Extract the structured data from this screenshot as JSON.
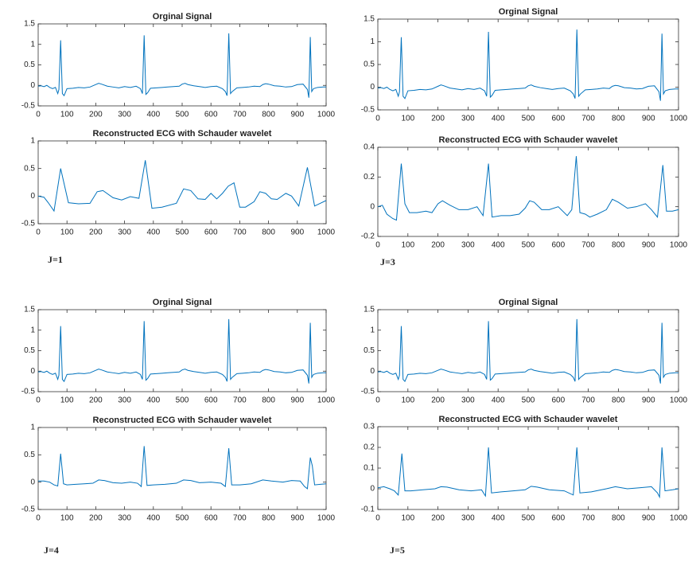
{
  "chart_data": [
    {
      "type": "line",
      "title": "Orginal Signal",
      "color": "#0072bd",
      "x": [
        0,
        10,
        20,
        30,
        40,
        50,
        60,
        68,
        72,
        78,
        84,
        90,
        100,
        120,
        140,
        160,
        180,
        200,
        210,
        220,
        240,
        260,
        280,
        300,
        320,
        340,
        355,
        362,
        368,
        374,
        380,
        390,
        410,
        430,
        450,
        470,
        490,
        500,
        510,
        520,
        540,
        560,
        580,
        600,
        620,
        640,
        650,
        656,
        662,
        668,
        674,
        690,
        710,
        730,
        750,
        770,
        780,
        790,
        800,
        820,
        840,
        860,
        880,
        900,
        920,
        935,
        940,
        945,
        950,
        956,
        970,
        990,
        1000
      ],
      "values": [
        -0.02,
        -0.01,
        -0.03,
        0,
        -0.05,
        -0.08,
        -0.05,
        -0.2,
        -0.1,
        1.1,
        -0.2,
        -0.25,
        -0.08,
        -0.07,
        -0.05,
        -0.06,
        -0.04,
        0.02,
        0.05,
        0.03,
        -0.02,
        -0.04,
        -0.06,
        -0.03,
        -0.05,
        -0.02,
        -0.08,
        -0.2,
        1.22,
        -0.22,
        -0.18,
        -0.07,
        -0.06,
        -0.05,
        -0.04,
        -0.03,
        -0.02,
        0.03,
        0.05,
        0.02,
        -0.01,
        -0.03,
        -0.05,
        -0.03,
        -0.02,
        -0.08,
        -0.15,
        -0.25,
        1.27,
        -0.2,
        -0.15,
        -0.06,
        -0.05,
        -0.04,
        -0.02,
        -0.03,
        0.02,
        0.04,
        0.03,
        -0.01,
        -0.02,
        -0.04,
        -0.03,
        0.02,
        0.03,
        -0.1,
        -0.3,
        1.18,
        -0.15,
        -0.08,
        -0.05,
        -0.04,
        -0.04
      ],
      "xlim": [
        0,
        1000
      ],
      "xticks": [
        0,
        100,
        200,
        300,
        400,
        500,
        600,
        700,
        800,
        900,
        1000
      ],
      "ylim": [
        -0.5,
        1.5
      ],
      "yticks": [
        -0.5,
        0,
        0.5,
        1,
        1.5
      ]
    },
    {
      "type": "line",
      "title": "Reconstructed ECG with Schauder wavelet",
      "color": "#0072bd",
      "x": [
        0,
        20,
        35,
        55,
        78,
        105,
        140,
        180,
        205,
        225,
        260,
        290,
        320,
        350,
        372,
        395,
        430,
        480,
        505,
        530,
        555,
        580,
        600,
        620,
        640,
        660,
        680,
        700,
        720,
        750,
        770,
        790,
        810,
        830,
        860,
        880,
        905,
        935,
        960,
        1000
      ],
      "values": [
        0,
        -0.02,
        -0.12,
        -0.27,
        0.5,
        -0.12,
        -0.14,
        -0.13,
        0.08,
        0.1,
        -0.03,
        -0.07,
        -0.01,
        -0.04,
        0.65,
        -0.22,
        -0.2,
        -0.13,
        0.13,
        0.1,
        -0.05,
        -0.06,
        0.05,
        -0.05,
        0.05,
        0.18,
        0.24,
        -0.2,
        -0.2,
        -0.1,
        0.08,
        0.05,
        -0.05,
        -0.06,
        0.05,
        0,
        -0.18,
        0.52,
        -0.18,
        -0.08
      ],
      "xlim": [
        0,
        1000
      ],
      "xticks": [
        0,
        100,
        200,
        300,
        400,
        500,
        600,
        700,
        800,
        900,
        1000
      ],
      "ylim": [
        -0.5,
        1
      ],
      "yticks": [
        -0.5,
        0,
        0.5,
        1
      ]
    },
    {
      "type": "line",
      "title": "Orginal Signal",
      "color": "#0072bd",
      "x": [
        0,
        10,
        20,
        30,
        40,
        50,
        60,
        68,
        72,
        78,
        84,
        90,
        100,
        120,
        140,
        160,
        180,
        200,
        210,
        220,
        240,
        260,
        280,
        300,
        320,
        340,
        355,
        362,
        368,
        374,
        380,
        390,
        410,
        430,
        450,
        470,
        490,
        500,
        510,
        520,
        540,
        560,
        580,
        600,
        620,
        640,
        650,
        656,
        662,
        668,
        674,
        690,
        710,
        730,
        750,
        770,
        780,
        790,
        800,
        820,
        840,
        860,
        880,
        900,
        920,
        935,
        940,
        945,
        950,
        956,
        970,
        990,
        1000
      ],
      "values": [
        -0.02,
        -0.01,
        -0.03,
        0,
        -0.05,
        -0.08,
        -0.05,
        -0.2,
        -0.1,
        1.1,
        -0.2,
        -0.25,
        -0.08,
        -0.07,
        -0.05,
        -0.06,
        -0.04,
        0.02,
        0.05,
        0.03,
        -0.02,
        -0.04,
        -0.06,
        -0.03,
        -0.05,
        -0.02,
        -0.08,
        -0.2,
        1.22,
        -0.22,
        -0.18,
        -0.07,
        -0.06,
        -0.05,
        -0.04,
        -0.03,
        -0.02,
        0.03,
        0.05,
        0.02,
        -0.01,
        -0.03,
        -0.05,
        -0.03,
        -0.02,
        -0.08,
        -0.15,
        -0.25,
        1.27,
        -0.2,
        -0.15,
        -0.06,
        -0.05,
        -0.04,
        -0.02,
        -0.03,
        0.02,
        0.04,
        0.03,
        -0.01,
        -0.02,
        -0.04,
        -0.03,
        0.02,
        0.03,
        -0.1,
        -0.3,
        1.18,
        -0.15,
        -0.08,
        -0.05,
        -0.04,
        -0.04
      ],
      "xlim": [
        0,
        1000
      ],
      "xticks": [
        0,
        100,
        200,
        300,
        400,
        500,
        600,
        700,
        800,
        900,
        1000
      ],
      "ylim": [
        -0.5,
        1.5
      ],
      "yticks": [
        -0.5,
        0,
        0.5,
        1,
        1.5
      ]
    },
    {
      "type": "line",
      "title": "Reconstructed ECG with Schauder wavelet",
      "color": "#0072bd",
      "x": [
        0,
        15,
        30,
        50,
        62,
        78,
        90,
        105,
        130,
        160,
        180,
        200,
        215,
        240,
        270,
        300,
        330,
        350,
        368,
        380,
        410,
        440,
        470,
        490,
        505,
        520,
        545,
        570,
        600,
        630,
        645,
        660,
        672,
        690,
        705,
        730,
        760,
        780,
        800,
        830,
        860,
        890,
        910,
        930,
        948,
        960,
        980,
        1000
      ],
      "values": [
        0,
        0.01,
        -0.05,
        -0.08,
        -0.09,
        0.29,
        0.02,
        -0.04,
        -0.04,
        -0.03,
        -0.04,
        0.02,
        0.04,
        0.01,
        -0.02,
        -0.02,
        0,
        -0.06,
        0.29,
        -0.07,
        -0.06,
        -0.06,
        -0.05,
        -0.01,
        0.04,
        0.03,
        -0.02,
        -0.02,
        0,
        -0.06,
        -0.02,
        0.34,
        -0.04,
        -0.05,
        -0.07,
        -0.05,
        -0.02,
        0.05,
        0.03,
        -0.01,
        0,
        0.02,
        -0.02,
        -0.07,
        0.28,
        -0.03,
        -0.03,
        -0.02
      ],
      "xlim": [
        0,
        1000
      ],
      "xticks": [
        0,
        100,
        200,
        300,
        400,
        500,
        600,
        700,
        800,
        900,
        1000
      ],
      "ylim": [
        -0.2,
        0.4
      ],
      "yticks": [
        -0.2,
        0,
        0.2,
        0.4
      ]
    },
    {
      "type": "line",
      "title": "Orginal Signal",
      "color": "#0072bd",
      "x": [
        0,
        10,
        20,
        30,
        40,
        50,
        60,
        68,
        72,
        78,
        84,
        90,
        100,
        120,
        140,
        160,
        180,
        200,
        210,
        220,
        240,
        260,
        280,
        300,
        320,
        340,
        355,
        362,
        368,
        374,
        380,
        390,
        410,
        430,
        450,
        470,
        490,
        500,
        510,
        520,
        540,
        560,
        580,
        600,
        620,
        640,
        650,
        656,
        662,
        668,
        674,
        690,
        710,
        730,
        750,
        770,
        780,
        790,
        800,
        820,
        840,
        860,
        880,
        900,
        920,
        935,
        940,
        945,
        950,
        956,
        970,
        990,
        1000
      ],
      "values": [
        -0.02,
        -0.01,
        -0.03,
        0,
        -0.05,
        -0.08,
        -0.05,
        -0.2,
        -0.1,
        1.1,
        -0.2,
        -0.25,
        -0.08,
        -0.07,
        -0.05,
        -0.06,
        -0.04,
        0.02,
        0.05,
        0.03,
        -0.02,
        -0.04,
        -0.06,
        -0.03,
        -0.05,
        -0.02,
        -0.08,
        -0.2,
        1.22,
        -0.22,
        -0.18,
        -0.07,
        -0.06,
        -0.05,
        -0.04,
        -0.03,
        -0.02,
        0.03,
        0.05,
        0.02,
        -0.01,
        -0.03,
        -0.05,
        -0.03,
        -0.02,
        -0.08,
        -0.15,
        -0.25,
        1.27,
        -0.2,
        -0.15,
        -0.06,
        -0.05,
        -0.04,
        -0.02,
        -0.03,
        0.02,
        0.04,
        0.03,
        -0.01,
        -0.02,
        -0.04,
        -0.03,
        0.02,
        0.03,
        -0.1,
        -0.3,
        1.18,
        -0.15,
        -0.08,
        -0.05,
        -0.04,
        -0.04
      ],
      "xlim": [
        0,
        1000
      ],
      "xticks": [
        0,
        100,
        200,
        300,
        400,
        500,
        600,
        700,
        800,
        900,
        1000
      ],
      "ylim": [
        -0.5,
        1.5
      ],
      "yticks": [
        -0.5,
        0,
        0.5,
        1,
        1.5
      ]
    },
    {
      "type": "line",
      "title": "Reconstructed ECG with Schauder wavelet",
      "color": "#0072bd",
      "x": [
        0,
        20,
        40,
        55,
        68,
        78,
        88,
        100,
        130,
        160,
        190,
        210,
        230,
        260,
        290,
        320,
        345,
        358,
        368,
        378,
        400,
        440,
        480,
        505,
        530,
        560,
        600,
        635,
        650,
        662,
        672,
        700,
        740,
        780,
        810,
        850,
        880,
        910,
        925,
        935,
        945,
        952,
        960,
        980,
        1000
      ],
      "values": [
        0.02,
        0.02,
        0,
        -0.05,
        -0.07,
        0.52,
        -0.03,
        -0.05,
        -0.04,
        -0.03,
        -0.02,
        0.04,
        0.03,
        -0.01,
        -0.02,
        0,
        -0.02,
        -0.08,
        0.66,
        -0.06,
        -0.05,
        -0.04,
        -0.02,
        0.04,
        0.03,
        -0.01,
        0,
        -0.02,
        -0.08,
        0.62,
        -0.05,
        -0.05,
        -0.03,
        0.04,
        0.02,
        0,
        0.03,
        0.02,
        -0.08,
        -0.12,
        0.45,
        0.3,
        -0.05,
        -0.04,
        -0.03
      ],
      "xlim": [
        0,
        1000
      ],
      "xticks": [
        0,
        100,
        200,
        300,
        400,
        500,
        600,
        700,
        800,
        900,
        1000
      ],
      "ylim": [
        -0.5,
        1
      ],
      "yticks": [
        -0.5,
        0,
        0.5,
        1
      ]
    },
    {
      "type": "line",
      "title": "Orginal Signal",
      "color": "#0072bd",
      "x": [
        0,
        10,
        20,
        30,
        40,
        50,
        60,
        68,
        72,
        78,
        84,
        90,
        100,
        120,
        140,
        160,
        180,
        200,
        210,
        220,
        240,
        260,
        280,
        300,
        320,
        340,
        355,
        362,
        368,
        374,
        380,
        390,
        410,
        430,
        450,
        470,
        490,
        500,
        510,
        520,
        540,
        560,
        580,
        600,
        620,
        640,
        650,
        656,
        662,
        668,
        674,
        690,
        710,
        730,
        750,
        770,
        780,
        790,
        800,
        820,
        840,
        860,
        880,
        900,
        920,
        935,
        940,
        945,
        950,
        956,
        970,
        990,
        1000
      ],
      "values": [
        -0.02,
        -0.01,
        -0.03,
        0,
        -0.05,
        -0.08,
        -0.05,
        -0.2,
        -0.1,
        1.1,
        -0.2,
        -0.25,
        -0.08,
        -0.07,
        -0.05,
        -0.06,
        -0.04,
        0.02,
        0.05,
        0.03,
        -0.02,
        -0.04,
        -0.06,
        -0.03,
        -0.05,
        -0.02,
        -0.08,
        -0.2,
        1.22,
        -0.22,
        -0.18,
        -0.07,
        -0.06,
        -0.05,
        -0.04,
        -0.03,
        -0.02,
        0.03,
        0.05,
        0.02,
        -0.01,
        -0.03,
        -0.05,
        -0.03,
        -0.02,
        -0.08,
        -0.15,
        -0.25,
        1.27,
        -0.2,
        -0.15,
        -0.06,
        -0.05,
        -0.04,
        -0.02,
        -0.03,
        0.02,
        0.04,
        0.03,
        -0.01,
        -0.02,
        -0.04,
        -0.03,
        0.02,
        0.03,
        -0.1,
        -0.3,
        1.18,
        -0.15,
        -0.08,
        -0.05,
        -0.04,
        -0.04
      ],
      "xlim": [
        0,
        1000
      ],
      "xticks": [
        0,
        100,
        200,
        300,
        400,
        500,
        600,
        700,
        800,
        900,
        1000
      ],
      "ylim": [
        -0.5,
        1.5
      ],
      "yticks": [
        -0.5,
        0,
        0.5,
        1,
        1.5
      ]
    },
    {
      "type": "line",
      "title": "Reconstructed ECG with Schauder wavelet",
      "color": "#0072bd",
      "x": [
        0,
        20,
        40,
        55,
        68,
        80,
        90,
        110,
        150,
        190,
        210,
        230,
        270,
        310,
        345,
        358,
        368,
        378,
        410,
        450,
        490,
        510,
        530,
        570,
        620,
        650,
        662,
        672,
        710,
        760,
        790,
        830,
        870,
        910,
        930,
        937,
        945,
        955,
        980,
        1000
      ],
      "values": [
        0.005,
        0.01,
        0,
        -0.01,
        -0.03,
        0.17,
        -0.01,
        -0.01,
        -0.005,
        0,
        0.01,
        0.008,
        -0.005,
        -0.01,
        -0.005,
        -0.035,
        0.2,
        -0.02,
        -0.015,
        -0.01,
        -0.005,
        0.012,
        0.008,
        -0.005,
        -0.01,
        -0.03,
        0.2,
        -0.02,
        -0.015,
        0,
        0.01,
        0,
        0.005,
        0.01,
        -0.02,
        -0.04,
        0.2,
        -0.01,
        -0.005,
        0
      ],
      "xlim": [
        0,
        1000
      ],
      "xticks": [
        0,
        100,
        200,
        300,
        400,
        500,
        600,
        700,
        800,
        900,
        1000
      ],
      "ylim": [
        -0.1,
        0.3
      ],
      "yticks": [
        -0.1,
        0,
        0.1,
        0.2,
        0.3
      ]
    }
  ],
  "panel_labels": [
    "J=1",
    "J=3",
    "J=4",
    "J=5"
  ]
}
